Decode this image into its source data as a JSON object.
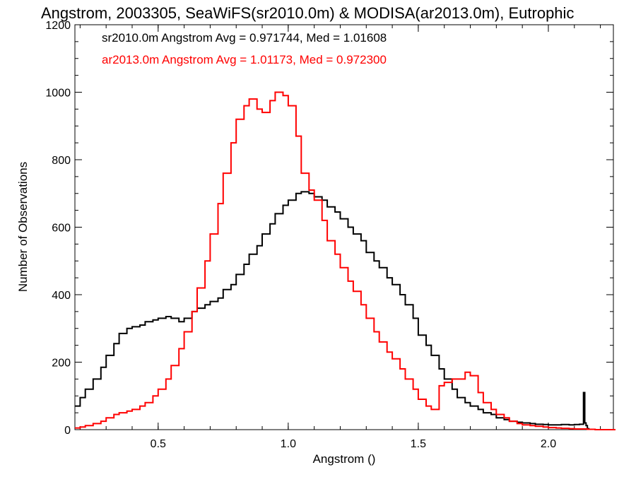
{
  "chart_data": {
    "type": "line",
    "title": "Angstrom, 2003305, SeaWiFS(sr2010.0m) & MODISA(ar2013.0m), Eutrophic",
    "xlabel": "Angstrom ()",
    "ylabel": "Number of Observations",
    "xlim": [
      0.18,
      2.25
    ],
    "ylim": [
      0,
      1200
    ],
    "xticks": [
      0.5,
      1.0,
      1.5,
      2.0
    ],
    "xtick_labels": [
      "0.5",
      "1.0",
      "1.5",
      "2.0"
    ],
    "yticks": [
      0,
      200,
      400,
      600,
      800,
      1000,
      1200
    ],
    "ytick_labels": [
      "0",
      "200",
      "400",
      "600",
      "800",
      "1000",
      "1200"
    ],
    "grid": false,
    "legend_placement": "top-left",
    "annotations": [
      {
        "text": "sr2010.0m Angstrom Avg = 0.971744, Med = 1.01608",
        "color": "#000000"
      },
      {
        "text": "ar2013.0m Angstrom Avg = 1.01173, Med = 0.972300",
        "color": "#ff0000"
      }
    ],
    "series": [
      {
        "color": "#000000",
        "x": [
          0.18,
          0.2,
          0.22,
          0.25,
          0.28,
          0.3,
          0.33,
          0.35,
          0.38,
          0.4,
          0.43,
          0.45,
          0.48,
          0.5,
          0.53,
          0.55,
          0.58,
          0.6,
          0.63,
          0.65,
          0.68,
          0.7,
          0.73,
          0.75,
          0.78,
          0.8,
          0.83,
          0.85,
          0.88,
          0.9,
          0.93,
          0.95,
          0.98,
          1.0,
          1.03,
          1.05,
          1.08,
          1.1,
          1.13,
          1.15,
          1.18,
          1.2,
          1.23,
          1.25,
          1.28,
          1.3,
          1.33,
          1.35,
          1.38,
          1.4,
          1.43,
          1.45,
          1.48,
          1.5,
          1.53,
          1.55,
          1.58,
          1.6,
          1.63,
          1.65,
          1.68,
          1.7,
          1.73,
          1.75,
          1.78,
          1.8,
          1.83,
          1.85,
          1.88,
          1.9,
          1.93,
          1.95,
          1.98,
          2.0,
          2.03,
          2.05,
          2.08,
          2.1,
          2.12,
          2.135,
          2.14,
          2.145,
          2.15
        ],
        "y": [
          70,
          95,
          120,
          150,
          185,
          220,
          255,
          285,
          300,
          305,
          310,
          320,
          325,
          330,
          335,
          330,
          320,
          330,
          350,
          360,
          370,
          380,
          390,
          415,
          430,
          460,
          490,
          520,
          545,
          580,
          610,
          640,
          665,
          680,
          700,
          705,
          700,
          690,
          680,
          660,
          645,
          625,
          600,
          580,
          560,
          525,
          500,
          480,
          450,
          430,
          400,
          370,
          330,
          280,
          250,
          220,
          180,
          150,
          120,
          95,
          80,
          70,
          60,
          50,
          45,
          35,
          30,
          25,
          22,
          20,
          18,
          16,
          15,
          14,
          14,
          15,
          14,
          15,
          16,
          110,
          20,
          12,
          3
        ]
      },
      {
        "color": "#ff0000",
        "x": [
          0.18,
          0.2,
          0.22,
          0.25,
          0.28,
          0.3,
          0.33,
          0.35,
          0.38,
          0.4,
          0.43,
          0.45,
          0.48,
          0.5,
          0.53,
          0.55,
          0.58,
          0.6,
          0.63,
          0.65,
          0.68,
          0.7,
          0.73,
          0.75,
          0.78,
          0.8,
          0.83,
          0.85,
          0.88,
          0.9,
          0.93,
          0.95,
          0.98,
          1.0,
          1.03,
          1.05,
          1.08,
          1.1,
          1.13,
          1.15,
          1.18,
          1.2,
          1.23,
          1.25,
          1.28,
          1.3,
          1.33,
          1.35,
          1.38,
          1.4,
          1.43,
          1.45,
          1.48,
          1.5,
          1.53,
          1.55,
          1.58,
          1.6,
          1.63,
          1.65,
          1.68,
          1.7,
          1.73,
          1.75,
          1.78,
          1.8,
          1.83,
          1.85,
          1.88,
          1.9,
          1.93,
          1.95,
          1.98,
          2.0,
          2.03,
          2.05,
          2.08,
          2.1,
          2.12,
          2.15,
          2.18,
          2.2,
          2.25
        ],
        "y": [
          5,
          8,
          12,
          18,
          25,
          35,
          45,
          50,
          55,
          60,
          70,
          80,
          100,
          120,
          150,
          190,
          240,
          290,
          350,
          420,
          500,
          580,
          670,
          760,
          850,
          920,
          960,
          980,
          950,
          940,
          975,
          1000,
          990,
          960,
          870,
          760,
          710,
          680,
          620,
          560,
          520,
          480,
          440,
          410,
          370,
          330,
          290,
          260,
          230,
          210,
          180,
          150,
          120,
          90,
          70,
          60,
          130,
          140,
          150,
          150,
          170,
          160,
          110,
          80,
          60,
          45,
          35,
          25,
          18,
          14,
          12,
          10,
          8,
          6,
          5,
          4,
          3,
          2,
          2,
          1,
          0,
          0,
          0
        ]
      }
    ]
  }
}
